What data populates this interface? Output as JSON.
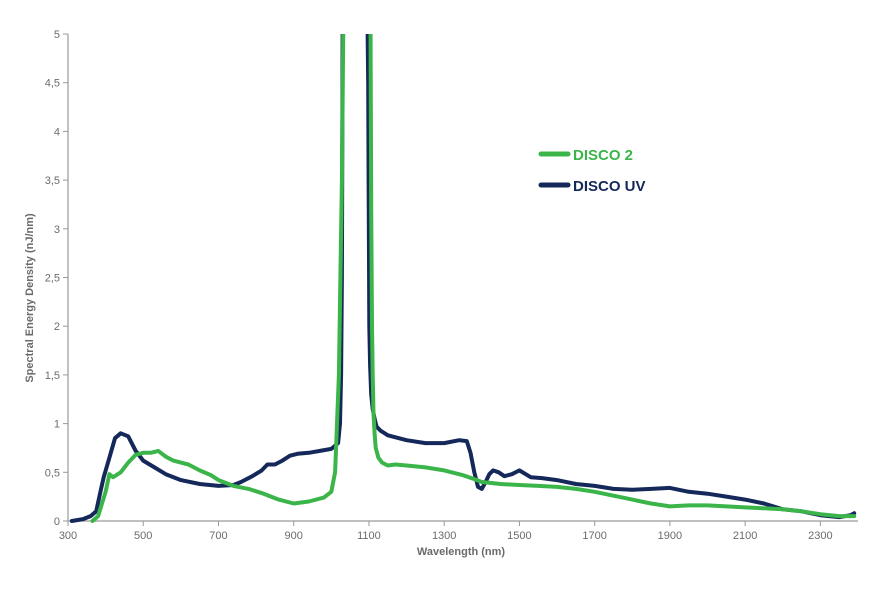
{
  "chart_data": {
    "type": "line",
    "title": "",
    "xlabel": "Wavelength (nm)",
    "ylabel": "Spectral Energy  Density (nJ/nm)",
    "xlim": [
      300,
      2400
    ],
    "ylim": [
      0,
      5
    ],
    "x_ticks": [
      300,
      500,
      700,
      900,
      1100,
      1300,
      1500,
      1700,
      1900,
      2100,
      2300
    ],
    "x_tick_labels": [
      "300",
      "500",
      "700",
      "900",
      "1100",
      "1300",
      "1500",
      "1700",
      "1900",
      "2100",
      "2300"
    ],
    "y_ticks": [
      0,
      0.5,
      1,
      1.5,
      2,
      2.5,
      3,
      3.5,
      4,
      4.5,
      5
    ],
    "y_tick_labels": [
      "0",
      "0,5",
      "1",
      "1,5",
      "2",
      "2,5",
      "3",
      "3,5",
      "4",
      "4,5",
      "5"
    ],
    "grid": false,
    "legend_position": "top-right",
    "series": [
      {
        "name": "DISCO 2",
        "color": "#3bb54a",
        "x": [
          365,
          380,
          400,
          410,
          420,
          440,
          460,
          480,
          500,
          520,
          540,
          560,
          580,
          600,
          620,
          650,
          680,
          700,
          740,
          780,
          820,
          860,
          900,
          940,
          980,
          1000,
          1010,
          1020,
          1028,
          1032,
          1036,
          1040,
          1100,
          1104,
          1106,
          1108,
          1110,
          1112,
          1115,
          1118,
          1125,
          1135,
          1150,
          1170,
          1200,
          1250,
          1300,
          1350,
          1380,
          1400,
          1450,
          1500,
          1550,
          1600,
          1650,
          1700,
          1750,
          1800,
          1850,
          1900,
          1950,
          2000,
          2050,
          2100,
          2150,
          2200,
          2250,
          2300,
          2350,
          2390
        ],
        "y": [
          0.0,
          0.05,
          0.3,
          0.48,
          0.45,
          0.5,
          0.6,
          0.68,
          0.7,
          0.7,
          0.72,
          0.66,
          0.62,
          0.6,
          0.58,
          0.52,
          0.47,
          0.42,
          0.36,
          0.33,
          0.28,
          0.22,
          0.18,
          0.2,
          0.24,
          0.3,
          0.5,
          1.5,
          3.5,
          5.2,
          5.2,
          5.2,
          5.2,
          5.2,
          3.2,
          2.0,
          1.5,
          1.1,
          0.9,
          0.75,
          0.65,
          0.6,
          0.57,
          0.58,
          0.57,
          0.55,
          0.52,
          0.47,
          0.43,
          0.4,
          0.38,
          0.37,
          0.36,
          0.35,
          0.33,
          0.3,
          0.26,
          0.22,
          0.18,
          0.15,
          0.16,
          0.16,
          0.15,
          0.14,
          0.13,
          0.12,
          0.1,
          0.07,
          0.05,
          0.05
        ]
      },
      {
        "name": "DISCO UV",
        "color": "#14285a",
        "x": [
          310,
          340,
          360,
          375,
          385,
          395,
          410,
          425,
          440,
          460,
          480,
          500,
          530,
          560,
          600,
          650,
          700,
          740,
          760,
          790,
          815,
          830,
          850,
          870,
          890,
          910,
          940,
          970,
          1000,
          1018,
          1023,
          1026,
          1028,
          1029,
          1030,
          1031,
          1096,
          1098,
          1099,
          1100,
          1101,
          1103,
          1106,
          1110,
          1115,
          1120,
          1130,
          1150,
          1200,
          1250,
          1300,
          1340,
          1360,
          1370,
          1380,
          1390,
          1400,
          1410,
          1420,
          1430,
          1445,
          1460,
          1480,
          1500,
          1530,
          1560,
          1600,
          1650,
          1700,
          1750,
          1800,
          1850,
          1900,
          1950,
          2000,
          2050,
          2100,
          2150,
          2200,
          2250,
          2300,
          2350,
          2380,
          2390
        ],
        "y": [
          0.0,
          0.02,
          0.05,
          0.1,
          0.28,
          0.45,
          0.65,
          0.85,
          0.9,
          0.87,
          0.72,
          0.62,
          0.55,
          0.48,
          0.42,
          0.38,
          0.36,
          0.37,
          0.4,
          0.46,
          0.52,
          0.58,
          0.58,
          0.62,
          0.67,
          0.69,
          0.7,
          0.72,
          0.74,
          0.8,
          1.0,
          1.5,
          2.5,
          3.5,
          5.0,
          5.2,
          5.2,
          4.5,
          3.5,
          2.7,
          2.0,
          1.6,
          1.3,
          1.15,
          1.05,
          0.97,
          0.93,
          0.88,
          0.83,
          0.8,
          0.8,
          0.83,
          0.82,
          0.7,
          0.5,
          0.35,
          0.33,
          0.4,
          0.48,
          0.52,
          0.5,
          0.46,
          0.48,
          0.52,
          0.45,
          0.44,
          0.42,
          0.38,
          0.36,
          0.33,
          0.32,
          0.33,
          0.34,
          0.3,
          0.28,
          0.25,
          0.22,
          0.18,
          0.12,
          0.1,
          0.06,
          0.04,
          0.06,
          0.08
        ]
      }
    ]
  }
}
